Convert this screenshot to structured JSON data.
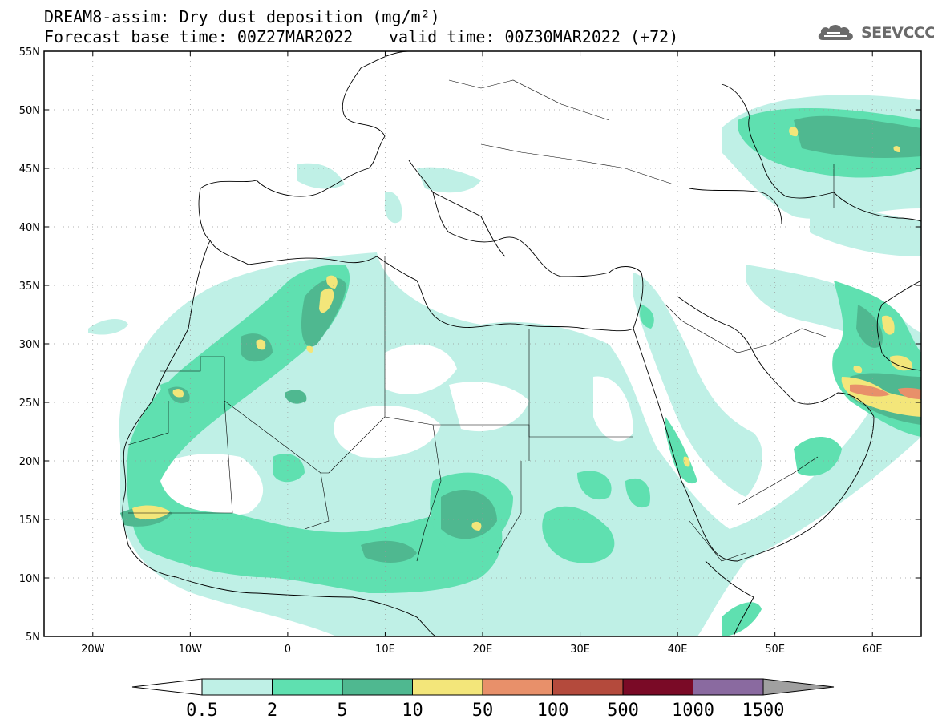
{
  "title": {
    "line1": "DREAM8-assim: Dry dust deposition (mg/m²)",
    "line2": "Forecast base time: 00Z27MAR2022",
    "valid": "valid time: 00Z30MAR2022 (+72)"
  },
  "logo": {
    "text": "SEEVCCC",
    "icon": "cloud-logo-icon"
  },
  "map": {
    "projection": "equirectangular",
    "lon_range": [
      -25,
      65
    ],
    "lat_range": [
      5,
      55
    ],
    "lat_ticks": [
      {
        "value": 55,
        "label": "55N"
      },
      {
        "value": 50,
        "label": "50N"
      },
      {
        "value": 45,
        "label": "45N"
      },
      {
        "value": 40,
        "label": "40N"
      },
      {
        "value": 35,
        "label": "35N"
      },
      {
        "value": 30,
        "label": "30N"
      },
      {
        "value": 25,
        "label": "25N"
      },
      {
        "value": 20,
        "label": "20N"
      },
      {
        "value": 15,
        "label": "15N"
      },
      {
        "value": 10,
        "label": "10N"
      },
      {
        "value": 5,
        "label": "5N"
      }
    ],
    "lon_ticks": [
      {
        "value": -20,
        "label": "20W"
      },
      {
        "value": -10,
        "label": "10W"
      },
      {
        "value": 0,
        "label": "0"
      },
      {
        "value": 10,
        "label": "10E"
      },
      {
        "value": 20,
        "label": "20E"
      },
      {
        "value": 30,
        "label": "30E"
      },
      {
        "value": 40,
        "label": "40E"
      },
      {
        "value": 50,
        "label": "50E"
      },
      {
        "value": 60,
        "label": "60E"
      }
    ],
    "gridlines": "dotted"
  },
  "colorbar": {
    "colors": [
      "#bff0e6",
      "#5fe0b0",
      "#4fb890",
      "#f3e67a",
      "#e8906a",
      "#b44a3c",
      "#7a0a26",
      "#8a6aa0"
    ],
    "under_color": "#ffffff",
    "over_color": "#a0a0a0",
    "labels": [
      "0.5",
      "2",
      "5",
      "10",
      "50",
      "100",
      "500",
      "1000",
      "1500"
    ]
  }
}
